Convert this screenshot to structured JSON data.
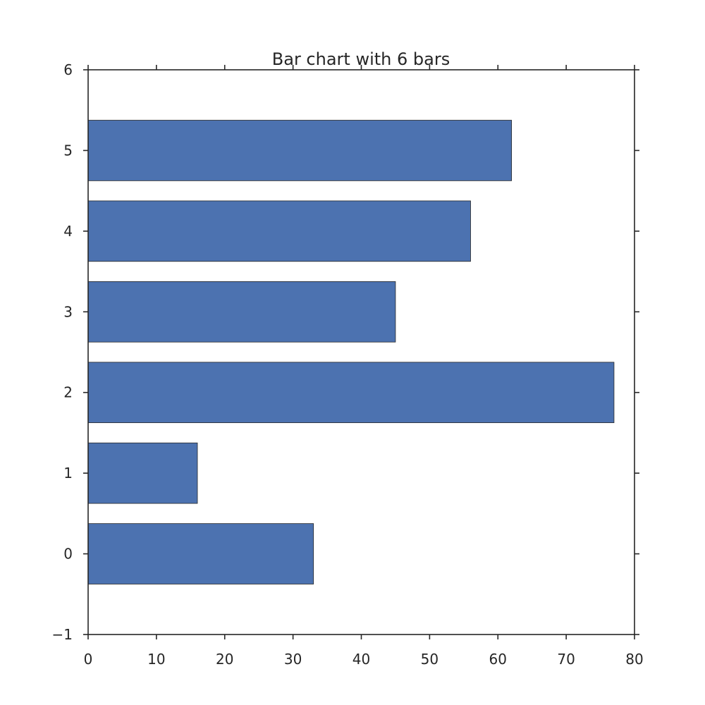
{
  "chart_data": {
    "type": "bar",
    "orientation": "horizontal",
    "title": "Bar chart with 6 bars",
    "xlabel": "",
    "ylabel": "",
    "categories": [
      0,
      1,
      2,
      3,
      4,
      5
    ],
    "values": [
      33,
      16,
      77,
      45,
      56,
      62
    ],
    "bar_height": 0.75,
    "xlim": [
      0,
      80
    ],
    "ylim": [
      -1,
      6
    ],
    "x_ticks": [
      "0",
      "10",
      "20",
      "30",
      "40",
      "50",
      "60",
      "70",
      "80"
    ],
    "y_ticks": [
      "−1",
      "0",
      "1",
      "2",
      "3",
      "4",
      "5",
      "6"
    ],
    "grid": false,
    "bar_color": "#4c72b0",
    "bar_edge_color": "#262626"
  }
}
